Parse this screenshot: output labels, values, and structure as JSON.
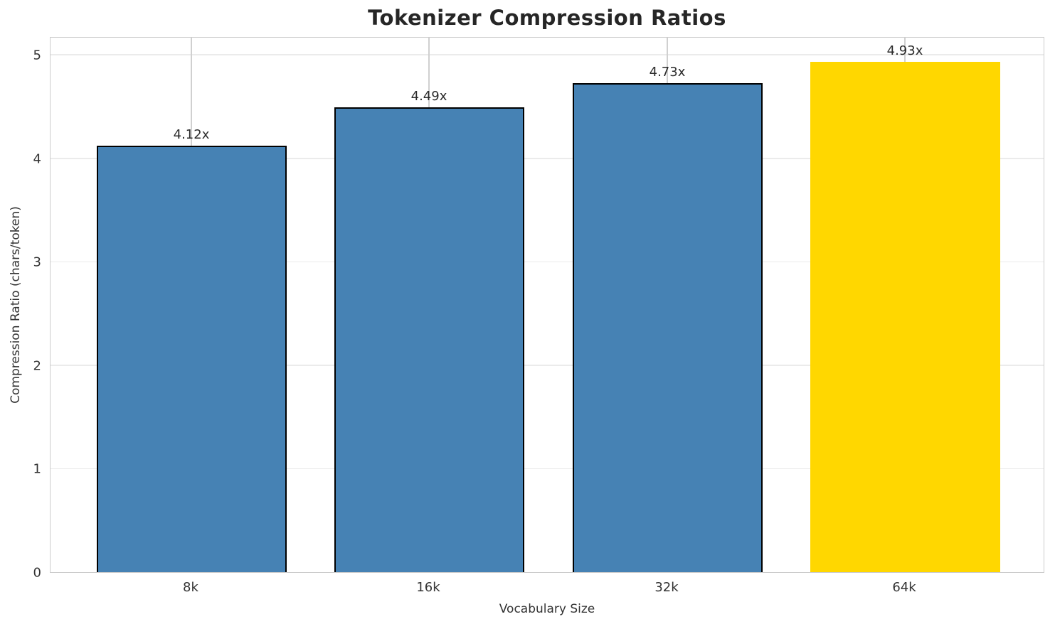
{
  "chart_data": {
    "type": "bar",
    "title": "Tokenizer Compression Ratios",
    "xlabel": "Vocabulary Size",
    "ylabel": "Compression Ratio (chars/token)",
    "categories": [
      "8k",
      "16k",
      "32k",
      "64k"
    ],
    "values": [
      4.12,
      4.49,
      4.73,
      4.93
    ],
    "bar_labels": [
      "4.12x",
      "4.49x",
      "4.73x",
      "4.93x"
    ],
    "yticks": [
      0,
      1,
      2,
      3,
      4,
      5
    ],
    "ylim": [
      0,
      5.18
    ],
    "grid": "on",
    "legend": "none",
    "highlight_index": 3,
    "colors": {
      "bar_default": "#4682B4",
      "bar_highlight": "#FFD700",
      "bar_edge": "#000000",
      "grid_vertical": "#d0d0d0",
      "grid_horizontal": "#ebebeb",
      "spine": "#cccccc",
      "title_text": "#262626",
      "label_text": "#333333"
    }
  }
}
